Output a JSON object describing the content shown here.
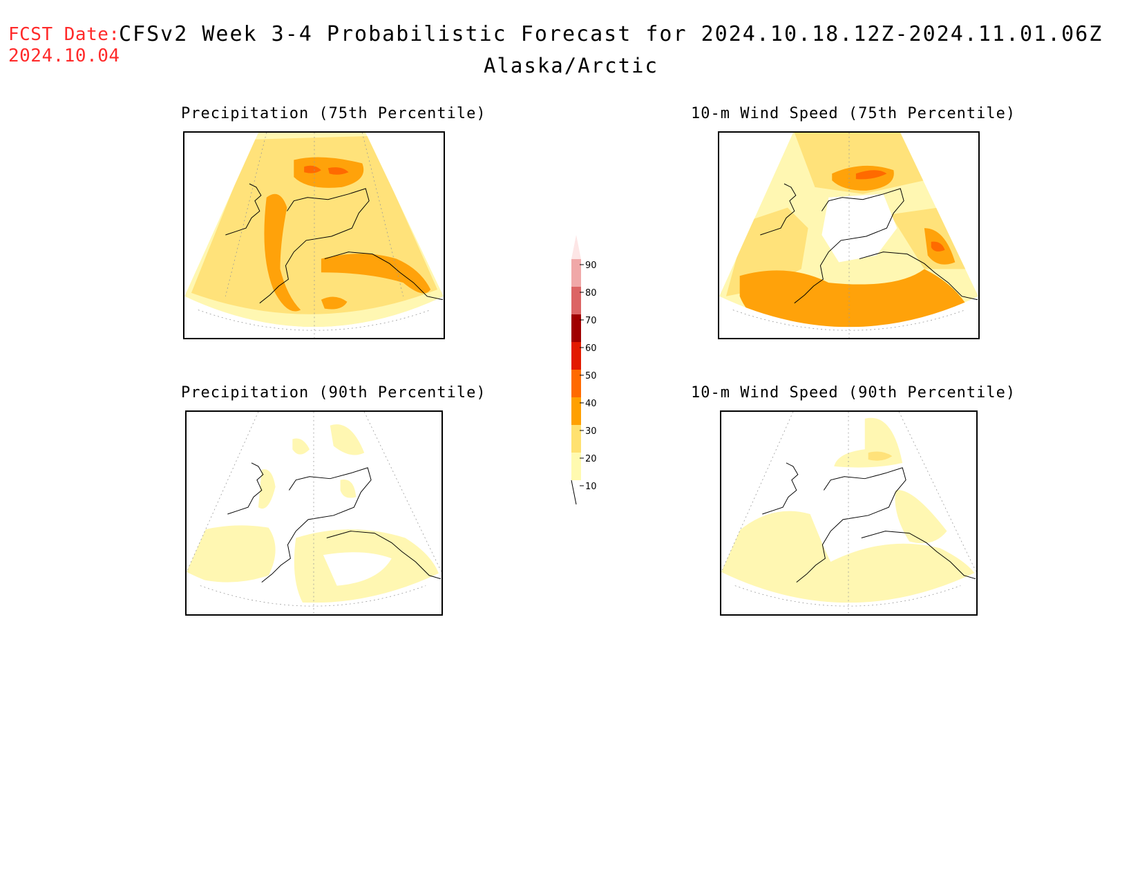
{
  "header": {
    "fcst_label": "FCST Date:",
    "fcst_date": "2024.10.04",
    "title": "CFSv2 Week 3-4 Probabilistic Forecast for 2024.10.18.12Z-2024.11.01.06Z",
    "region": "Alaska/Arctic"
  },
  "panels": [
    {
      "id": "precip-75",
      "title": "Precipitation (75th Percentile)"
    },
    {
      "id": "wind-75",
      "title": "10-m Wind Speed (75th Percentile)"
    },
    {
      "id": "precip-90",
      "title": "Precipitation (90th Percentile)"
    },
    {
      "id": "wind-90",
      "title": "10-m Wind Speed (90th Percentile)"
    }
  ],
  "colorbar": {
    "levels": [
      "90",
      "80",
      "70",
      "60",
      "50",
      "40",
      "30",
      "20",
      "10"
    ],
    "colors": [
      "#f0a8a8",
      "#dc6464",
      "#a00000",
      "#e21a00",
      "#ff6a00",
      "#ffa000",
      "#ffe170",
      "#fffab0"
    ],
    "top_color": "#fde6e6"
  },
  "colors": {
    "fcst_label": "#ff2a2a",
    "light_yellow": "#fff7b2",
    "yellow": "#ffe27a",
    "orange": "#ffa20a",
    "dark_orange": "#ff6a00",
    "red": "#e03a00"
  }
}
